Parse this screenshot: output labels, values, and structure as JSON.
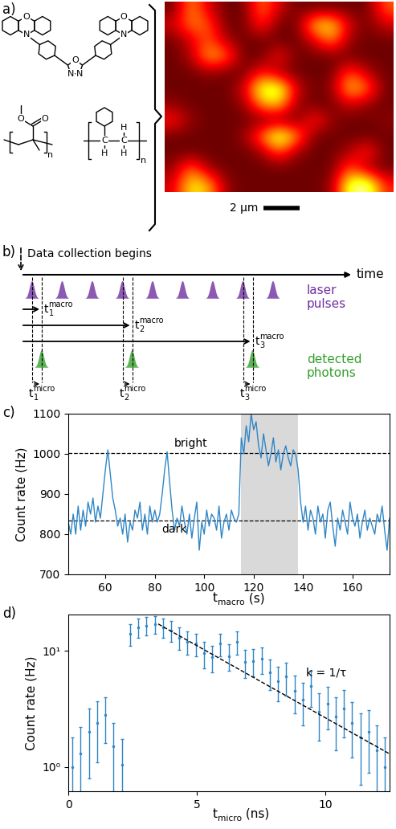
{
  "panel_a": {
    "label": "a)",
    "structures": {
      "molecule_atoms": [
        "O",
        "N",
        "O",
        "N",
        "N",
        "N",
        "O"
      ],
      "pmma_atoms": [
        "O",
        "O"
      ],
      "pmma_repeat": "n",
      "ps_atoms": [
        "C",
        "C",
        "H",
        "H",
        "H"
      ],
      "ps_repeat": "n"
    },
    "image": {
      "cells": [
        [
          0.15,
          0.6,
          0.3,
          0.15,
          0.15,
          0.55,
          0.3,
          0.15,
          0.15,
          0.15,
          0.15,
          0.15,
          0.5
        ],
        [
          0.3,
          0.55,
          0.5,
          0.15,
          0.15,
          0.45,
          0.15,
          0.15,
          0.7,
          0.75,
          0.3,
          0.15,
          0.3
        ],
        [
          0.15,
          0.3,
          0.5,
          0.25,
          0.15,
          0.15,
          0.15,
          0.15,
          0.3,
          0.6,
          0.2,
          0.15,
          0.15
        ],
        [
          0.15,
          0.25,
          0.65,
          0.55,
          0.15,
          0.15,
          0.4,
          0.15,
          0.15,
          0.15,
          0.15,
          0.15,
          0.15
        ],
        [
          0.15,
          0.15,
          0.2,
          0.15,
          0.15,
          0.4,
          0.2,
          0.15,
          0.15,
          0.15,
          0.5,
          0.25,
          0.15
        ],
        [
          0.15,
          0.15,
          0.15,
          0.15,
          0.3,
          0.85,
          0.9,
          0.3,
          0.15,
          0.2,
          0.7,
          0.55,
          0.15
        ],
        [
          0.2,
          0.15,
          0.15,
          0.15,
          0.2,
          0.6,
          0.7,
          0.2,
          0.15,
          0.15,
          0.3,
          0.2,
          0.15
        ],
        [
          0.4,
          0.2,
          0.15,
          0.15,
          0.15,
          0.15,
          0.15,
          0.15,
          0.45,
          0.2,
          0.15,
          0.15,
          0.2
        ],
        [
          0.15,
          0.15,
          0.15,
          0.15,
          0.2,
          0.55,
          0.95,
          0.6,
          0.15,
          0.15,
          0.15,
          0.15,
          0.15
        ],
        [
          0.15,
          0.15,
          0.15,
          0.15,
          0.15,
          0.2,
          0.5,
          0.2,
          0.15,
          0.15,
          0.25,
          0.45,
          0.15
        ],
        [
          0.2,
          0.55,
          0.2,
          0.15,
          0.15,
          0.15,
          0.15,
          0.15,
          0.15,
          0.15,
          0.5,
          0.2,
          0.15
        ],
        [
          0.3,
          0.75,
          0.65,
          0.2,
          0.15,
          0.15,
          0.15,
          0.15,
          0.15,
          0.2,
          0.85,
          0.95,
          0.4
        ]
      ],
      "color_range": [
        0,
        1
      ],
      "width": 12.7,
      "height": 12.0,
      "scale_bar": {
        "length": 2,
        "label": "2 µm"
      }
    }
  },
  "panel_b": {
    "label": "b)",
    "start_label": "Data collection begins",
    "axis_label": "time",
    "laser": {
      "label_lines": [
        "laser",
        "pulses"
      ],
      "color": "#7030a0"
    },
    "photons": {
      "label_lines": [
        "detected",
        "photons"
      ],
      "color": "#33a02c"
    },
    "macro_times": [
      {
        "base": "t",
        "sub": "1",
        "sup": "macro"
      },
      {
        "base": "t",
        "sub": "2",
        "sup": "macro"
      },
      {
        "base": "t",
        "sub": "3",
        "sup": "macro"
      }
    ],
    "micro_times": [
      {
        "base": "t",
        "sub": "1",
        "sup": "micro"
      },
      {
        "base": "t",
        "sub": "2",
        "sup": "micro"
      },
      {
        "base": "t",
        "sub": "3",
        "sup": "micro"
      }
    ]
  },
  "chart_data": [
    {
      "type": "line",
      "panel_label": "c)",
      "x": [
        45,
        46,
        47,
        48,
        49,
        50,
        51,
        52,
        53,
        54,
        55,
        56,
        57,
        58,
        59,
        60,
        61,
        62,
        63,
        64,
        65,
        66,
        67,
        68,
        69,
        70,
        71,
        72,
        73,
        74,
        75,
        76,
        77,
        78,
        79,
        80,
        81,
        82,
        83,
        84,
        85,
        86,
        87,
        88,
        89,
        90,
        91,
        92,
        93,
        94,
        95,
        96,
        97,
        98,
        99,
        100,
        101,
        102,
        103,
        104,
        105,
        106,
        107,
        108,
        109,
        110,
        111,
        112,
        113,
        114,
        115,
        116,
        117,
        118,
        119,
        120,
        121,
        122,
        123,
        124,
        125,
        126,
        127,
        128,
        129,
        130,
        131,
        132,
        133,
        134,
        135,
        136,
        137,
        138,
        139,
        140,
        141,
        142,
        143,
        144,
        145,
        146,
        147,
        148,
        149,
        150,
        151,
        152,
        153,
        154,
        155,
        156,
        157,
        158,
        159,
        160,
        161,
        162,
        163,
        164,
        165,
        166,
        167,
        168,
        169,
        170,
        171,
        172,
        173,
        174,
        175
      ],
      "values": [
        830,
        800,
        850,
        800,
        870,
        810,
        860,
        820,
        880,
        850,
        890,
        830,
        870,
        840,
        900,
        960,
        1010,
        950,
        890,
        860,
        820,
        840,
        800,
        850,
        780,
        830,
        810,
        860,
        840,
        880,
        810,
        850,
        800,
        870,
        830,
        860,
        830,
        850,
        900,
        960,
        1005,
        930,
        860,
        810,
        840,
        820,
        870,
        830,
        800,
        850,
        790,
        840,
        880,
        760,
        830,
        800,
        860,
        820,
        850,
        840,
        810,
        870,
        790,
        830,
        850,
        810,
        860,
        840,
        830,
        850,
        1040,
        1000,
        1070,
        1030,
        1100,
        1060,
        1080,
        1020,
        990,
        1050,
        1010,
        970,
        1000,
        1040,
        980,
        1010,
        960,
        1000,
        1020,
        990,
        970,
        1010,
        1000,
        960,
        880,
        830,
        870,
        810,
        860,
        840,
        800,
        870,
        830,
        850,
        790,
        860,
        880,
        820,
        770,
        840,
        810,
        860,
        830,
        800,
        880,
        840,
        820,
        850,
        790,
        830,
        860,
        810,
        840,
        820,
        800,
        850,
        830,
        870,
        810,
        760,
        840
      ],
      "color": "#2f86c6",
      "xlim": [
        45,
        175
      ],
      "xticks": [
        60,
        80,
        100,
        120,
        140,
        160
      ],
      "ylim": [
        700,
        1100
      ],
      "yticks": [
        700,
        800,
        900,
        1000,
        1100
      ],
      "xlabel": {
        "base": "t",
        "sub": "macro",
        "tail": " (s)"
      },
      "ylabel": "Count rate (Hz)",
      "reference_lines": [
        {
          "label": "bright",
          "value": 1003
        },
        {
          "label": "dark",
          "value": 835
        }
      ],
      "highlight": [
        115,
        138
      ]
    },
    {
      "type": "scatter",
      "panel_label": "d)",
      "x": [
        0.16,
        0.48,
        0.8,
        1.12,
        1.44,
        1.76,
        2.08,
        2.4,
        2.72,
        3.04,
        3.36,
        3.68,
        4.0,
        4.32,
        4.64,
        4.96,
        5.28,
        5.6,
        5.92,
        6.24,
        6.56,
        6.88,
        7.2,
        7.52,
        7.84,
        8.16,
        8.48,
        8.8,
        9.12,
        9.44,
        9.76,
        10.08,
        10.4,
        10.72,
        11.04,
        11.36,
        11.68,
        12.0,
        12.32
      ],
      "values": [
        1.0,
        1.3,
        2.0,
        2.4,
        2.8,
        1.5,
        1.05,
        14,
        16,
        16.5,
        17,
        16,
        15,
        13,
        12,
        11.5,
        9.5,
        8.8,
        11.5,
        9,
        12,
        8,
        8.2,
        8.5,
        6.5,
        5.5,
        6,
        4.5,
        3.8,
        5,
        3,
        3.5,
        2.7,
        3.2,
        2.4,
        1.8,
        2.0,
        1.4,
        1.0
      ],
      "errors": [
        0.8,
        0.9,
        1.2,
        1.3,
        1.2,
        0.9,
        0.7,
        3,
        3,
        3,
        3,
        3,
        3,
        2.8,
        2.7,
        2.6,
        2.4,
        2.3,
        2.6,
        2.3,
        2.7,
        2.2,
        2.2,
        2.2,
        1.9,
        1.8,
        1.9,
        1.6,
        1.5,
        1.7,
        1.3,
        1.4,
        1.3,
        1.4,
        1.2,
        1.1,
        1.1,
        0.9,
        0.8
      ],
      "color": "#2f86c6",
      "marker": "dot",
      "log": "y",
      "xlim": [
        0,
        12.5
      ],
      "xticks": [
        0,
        5,
        10
      ],
      "ylim": [
        0.62,
        20.5
      ],
      "yticks": [
        {
          "value": 1,
          "label": "10⁰"
        },
        {
          "value": 10,
          "label": "10¹"
        }
      ],
      "xlabel": {
        "base": "t",
        "sub": "micro",
        "tail": " (ns)"
      },
      "ylabel": "Count rate (Hz)",
      "fit": {
        "x": [
          3.5,
          12.5
        ],
        "values": [
          17,
          1.3
        ],
        "label": "k = 1/τ",
        "line_style": "dashed"
      }
    }
  ]
}
